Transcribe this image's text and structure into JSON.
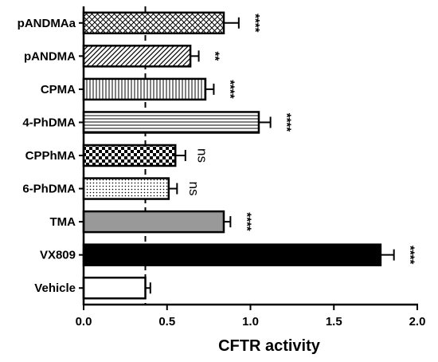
{
  "chart_data": {
    "type": "bar",
    "orientation": "horizontal",
    "title": "",
    "xlabel": "CFTR activity",
    "ylabel": "",
    "xlim": [
      0,
      2.0
    ],
    "xticks": [
      0.0,
      0.5,
      1.0,
      1.5,
      2.0
    ],
    "xtick_labels": [
      "0.0",
      "0.5",
      "1.0",
      "1.5",
      "2.0"
    ],
    "grid": false,
    "legend": "none",
    "reference_line": {
      "x": 0.37,
      "style": "dashed"
    },
    "categories": [
      "pANDMAa",
      "pANDMA",
      "CPMA",
      "4-PhDMA",
      "CPPhMA",
      "6-PhDMA",
      "TMA",
      "VX809",
      "Vehicle"
    ],
    "values": [
      0.84,
      0.64,
      0.73,
      1.05,
      0.55,
      0.51,
      0.84,
      1.78,
      0.37
    ],
    "errors": [
      0.09,
      0.05,
      0.05,
      0.07,
      0.06,
      0.05,
      0.04,
      0.08,
      0.03
    ],
    "significance": [
      "****",
      "**",
      "****",
      "****",
      "ns",
      "ns",
      "****",
      "****",
      ""
    ],
    "patterns": [
      "crosshatch",
      "diagonal",
      "vertical-lines",
      "horizontal-lines",
      "checkerboard",
      "dots",
      "solid-gray",
      "solid-black",
      "white"
    ],
    "colors": {
      "axis": "#000000",
      "gray_fill": "#999999",
      "black_fill": "#000000"
    }
  }
}
